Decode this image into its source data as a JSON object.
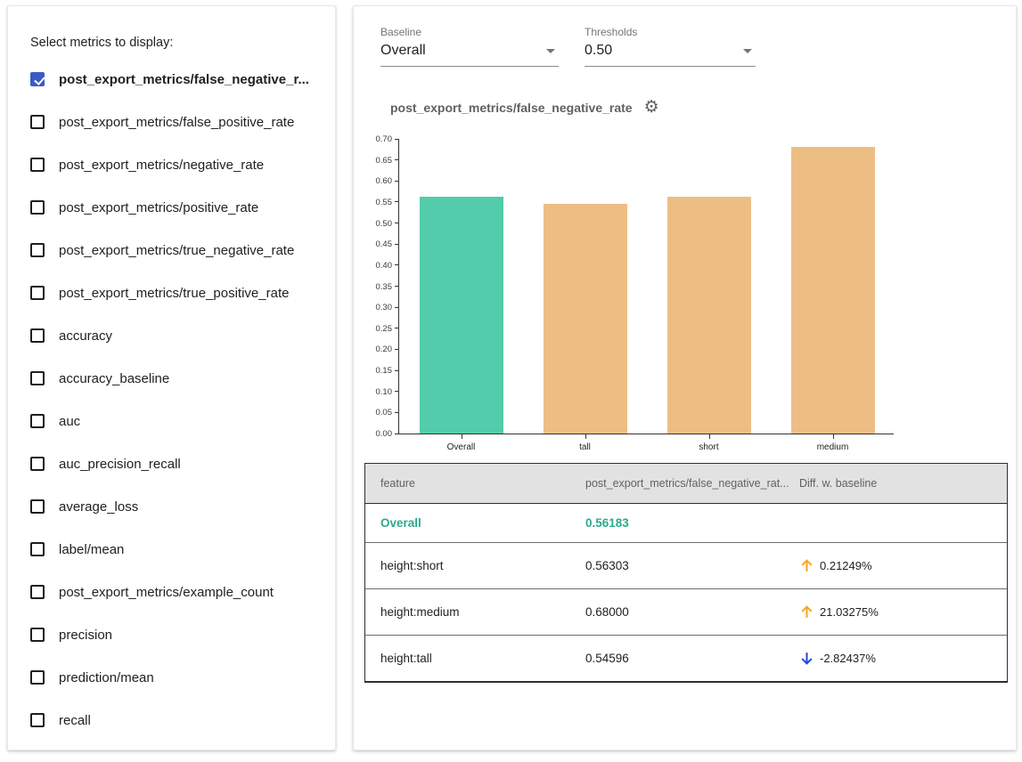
{
  "sidebar": {
    "title": "Select metrics to display:",
    "items": [
      {
        "label": "post_export_metrics/false_negative_r...",
        "checked": true
      },
      {
        "label": "post_export_metrics/false_positive_rate",
        "checked": false
      },
      {
        "label": "post_export_metrics/negative_rate",
        "checked": false
      },
      {
        "label": "post_export_metrics/positive_rate",
        "checked": false
      },
      {
        "label": "post_export_metrics/true_negative_rate",
        "checked": false
      },
      {
        "label": "post_export_metrics/true_positive_rate",
        "checked": false
      },
      {
        "label": "accuracy",
        "checked": false
      },
      {
        "label": "accuracy_baseline",
        "checked": false
      },
      {
        "label": "auc",
        "checked": false
      },
      {
        "label": "auc_precision_recall",
        "checked": false
      },
      {
        "label": "average_loss",
        "checked": false
      },
      {
        "label": "label/mean",
        "checked": false
      },
      {
        "label": "post_export_metrics/example_count",
        "checked": false
      },
      {
        "label": "precision",
        "checked": false
      },
      {
        "label": "prediction/mean",
        "checked": false
      },
      {
        "label": "recall",
        "checked": false
      }
    ]
  },
  "controls": {
    "baseline": {
      "label": "Baseline",
      "value": "Overall"
    },
    "thresholds": {
      "label": "Thresholds",
      "value": "0.50"
    }
  },
  "chart": {
    "title": "post_export_metrics/false_negative_rate",
    "chart_data": {
      "type": "bar",
      "title": "post_export_metrics/false_negative_rate",
      "categories": [
        "Overall",
        "tall",
        "short",
        "medium"
      ],
      "values": [
        0.56183,
        0.54596,
        0.56303,
        0.68
      ],
      "bar_colors": [
        "#52ccab",
        "#edbe84",
        "#edbe84",
        "#edbe84"
      ],
      "xlabel": "",
      "ylabel": "",
      "ylim": [
        0,
        0.7
      ],
      "ytick_step": 0.05,
      "grid": false,
      "legend": "none"
    }
  },
  "table": {
    "headers": [
      "feature",
      "post_export_metrics/false_negative_rat...",
      "Diff. w. baseline"
    ],
    "rows": [
      {
        "feature": "Overall",
        "value": "0.56183",
        "diff": "",
        "direction": "none",
        "is_baseline": true
      },
      {
        "feature": "height:short",
        "value": "0.56303",
        "diff": "0.21249%",
        "direction": "up",
        "is_baseline": false
      },
      {
        "feature": "height:medium",
        "value": "0.68000",
        "diff": "21.03275%",
        "direction": "up",
        "is_baseline": false
      },
      {
        "feature": "height:tall",
        "value": "0.54596",
        "diff": "-2.82437%",
        "direction": "down",
        "is_baseline": false
      }
    ]
  },
  "icons": {
    "settings": "gear-icon",
    "dropdown": "chevron-down-icon",
    "up_arrow": "arrow-up-icon",
    "down_arrow": "arrow-down-icon"
  },
  "colors": {
    "checkbox_checked": "#3d5bc6",
    "bar_baseline": "#52ccab",
    "bar_slice": "#edbe84",
    "teal_text": "#2fa98c",
    "arrow_up": "#f5a623",
    "arrow_down": "#2742e0"
  }
}
